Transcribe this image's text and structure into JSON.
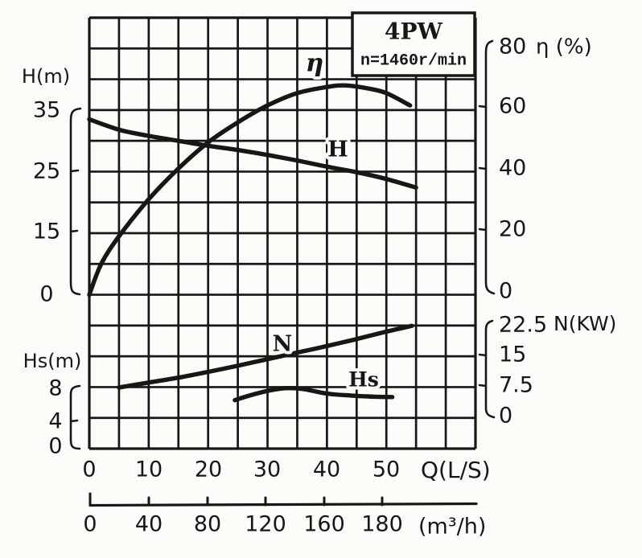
{
  "title_box": {
    "model": "4PW",
    "speed": "n=1460r/min"
  },
  "axes": {
    "H": {
      "title": "H(m)",
      "ticks": [
        "35",
        "25",
        "15",
        "0"
      ]
    },
    "Hs": {
      "title": "Hs(m)",
      "ticks": [
        "8",
        "4",
        "0"
      ]
    },
    "eta": {
      "title": "η (%)",
      "ticks": [
        "80",
        "60",
        "40",
        "20",
        "0"
      ]
    },
    "N": {
      "title": "N(KW)",
      "ticks": [
        "22.5",
        "15",
        "7.5",
        "0"
      ]
    },
    "Q": {
      "title": "Q(L/S)",
      "ticks": [
        "0",
        "10",
        "20",
        "30",
        "40",
        "50"
      ]
    },
    "Qm3h": {
      "title": "(m³/h)",
      "ticks": [
        "0",
        "40",
        "80",
        "120",
        "160",
        "180"
      ]
    }
  },
  "curve_labels": {
    "eta": "η",
    "H": "H",
    "N": "N",
    "Hs": "Hs"
  },
  "colors": {
    "ink": "#171717",
    "paper": "#fcfcf9"
  },
  "chart_data": {
    "type": "line",
    "title": "4PW pump performance curves at n=1460 r/min",
    "xlabel": "Q (L/S)",
    "x_secondary_label": "Q (m³/h)",
    "grid": "on",
    "axis_ranges": {
      "Q_LS": [
        0,
        50
      ],
      "Q_m3h": [
        0,
        180
      ],
      "H_m": [
        0,
        35
      ],
      "eta_pct": [
        0,
        80
      ],
      "N_KW": [
        0,
        22.5
      ],
      "Hs_m": [
        0,
        8
      ]
    },
    "series": [
      {
        "key": "eta",
        "name": "η",
        "unit": "%",
        "axis": "eta",
        "x": [
          0,
          2,
          5,
          10,
          15,
          20,
          25,
          30,
          35,
          40,
          43,
          47,
          50,
          54
        ],
        "y": [
          0,
          10,
          19,
          31,
          41,
          49.5,
          56,
          61.5,
          65.5,
          67.5,
          68,
          67,
          65.5,
          61.5
        ]
      },
      {
        "key": "h",
        "name": "H",
        "unit": "m",
        "axis": "H",
        "x": [
          0,
          5,
          10,
          15,
          20,
          25,
          30,
          35,
          40,
          45,
          50,
          55
        ],
        "y": [
          33.5,
          31.8,
          30.8,
          30,
          29.2,
          28.5,
          27.7,
          26.8,
          25.8,
          24.9,
          23.8,
          22.4
        ]
      },
      {
        "key": "n",
        "name": "N",
        "unit": "KW",
        "axis": "N",
        "x": [
          5,
          10,
          15,
          20,
          25,
          30,
          35,
          40,
          45,
          50,
          54.3
        ],
        "y": [
          7.4,
          8.6,
          9.8,
          11.2,
          12.7,
          14.3,
          15.9,
          17.5,
          19.2,
          21,
          22.4
        ]
      },
      {
        "key": "hs",
        "name": "Hs",
        "unit": "m",
        "axis": "Hs",
        "x": [
          24.5,
          27,
          30,
          33,
          36,
          40,
          44,
          48,
          51
        ],
        "y": [
          6.3,
          6.9,
          7.5,
          7.85,
          7.75,
          7.15,
          6.9,
          6.75,
          6.7
        ]
      }
    ]
  }
}
